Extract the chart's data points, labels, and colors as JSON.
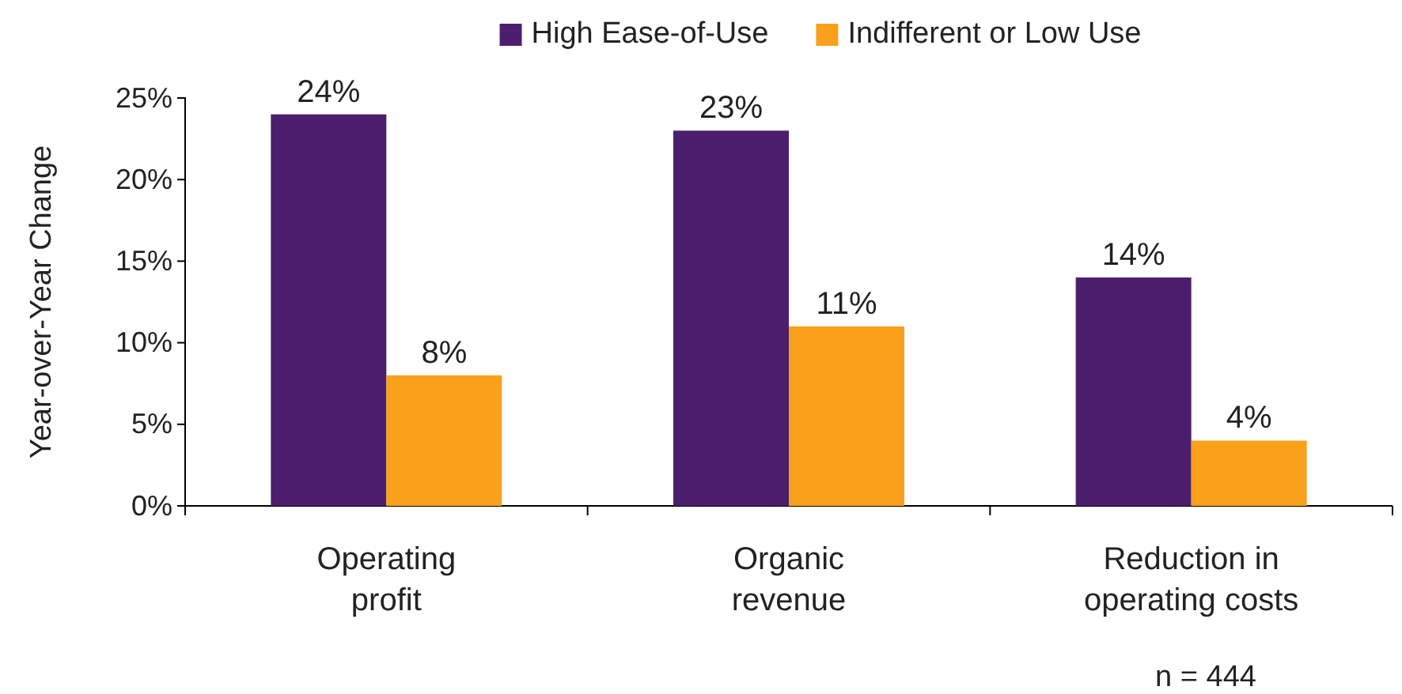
{
  "chart_data": {
    "type": "bar",
    "ylabel": "Year-over-Year Change",
    "categories": [
      "Operating\nprofit",
      "Organic\nrevenue",
      "Reduction in\noperating costs"
    ],
    "series": [
      {
        "name": "High Ease-of-Use",
        "color": "#4b1f6e",
        "values": [
          24,
          23,
          14
        ],
        "value_labels": [
          "24%",
          "23%",
          "14%"
        ]
      },
      {
        "name": "Indifferent or Low Use",
        "color": "#f9a11b",
        "values": [
          8,
          11,
          4
        ],
        "value_labels": [
          "8%",
          "11%",
          "4%"
        ]
      }
    ],
    "ylim": [
      0,
      25
    ],
    "yticks": [
      {
        "value": 0,
        "label": "0%"
      },
      {
        "value": 5,
        "label": "5%"
      },
      {
        "value": 10,
        "label": "10%"
      },
      {
        "value": 15,
        "label": "15%"
      },
      {
        "value": 20,
        "label": "20%"
      },
      {
        "value": 25,
        "label": "25%"
      }
    ],
    "legend": "top",
    "grid": false,
    "annotations": [
      "n = 444"
    ]
  }
}
